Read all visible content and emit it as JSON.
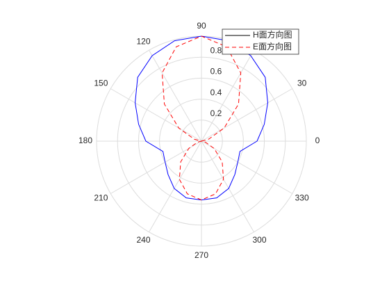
{
  "chart_data": {
    "type": "polar",
    "theta": [
      0,
      15,
      30,
      45,
      60,
      75,
      90,
      105,
      120,
      135,
      150,
      165,
      180,
      195,
      210,
      225,
      240,
      255,
      270,
      285,
      300,
      315,
      330,
      345,
      360
    ],
    "series": [
      {
        "name": "H面方向图",
        "color": "#0000ff",
        "linestyle": "solid",
        "values": [
          0.53,
          0.62,
          0.73,
          0.86,
          0.94,
          0.99,
          1,
          0.99,
          0.94,
          0.86,
          0.73,
          0.62,
          0.53,
          0.38,
          0.4,
          0.45,
          0.52,
          0.56,
          0.56,
          0.56,
          0.52,
          0.45,
          0.4,
          0.38,
          0.53
        ]
      },
      {
        "name": "E面方向图",
        "color": "#ff0000",
        "linestyle": "dashed",
        "values": [
          0,
          0.07,
          0.25,
          0.5,
          0.75,
          0.93,
          1,
          0.93,
          0.75,
          0.5,
          0.25,
          0.07,
          0,
          0.04,
          0.14,
          0.28,
          0.42,
          0.52,
          0.56,
          0.52,
          0.42,
          0.28,
          0.14,
          0.04,
          0
        ]
      }
    ],
    "rlim": [
      0,
      1
    ],
    "rticks": [
      0.2,
      0.4,
      0.6,
      0.8
    ],
    "thetaticks": [
      0,
      30,
      60,
      90,
      120,
      150,
      180,
      210,
      240,
      270,
      300,
      330
    ],
    "grid": true,
    "legend": "top-right"
  }
}
